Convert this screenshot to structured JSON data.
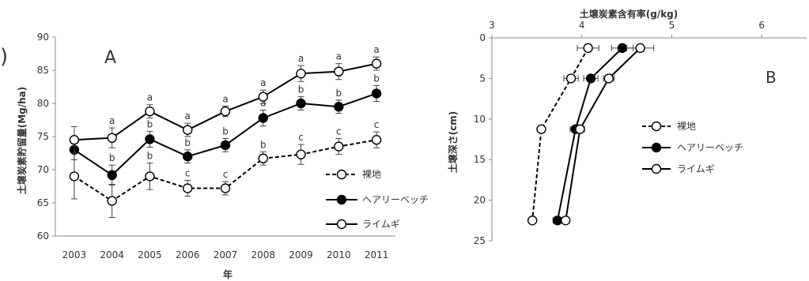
{
  "panel_letter_fragment": ")",
  "chart_data": [
    {
      "type": "line",
      "panel_label": "A",
      "title": "",
      "xlabel": "年",
      "ylabel": "土壌炭素貯留量(Mg/ha)",
      "ylim": [
        60,
        90
      ],
      "yticks": [
        60,
        65,
        70,
        75,
        80,
        85,
        90
      ],
      "x": [
        "2003",
        "2004",
        "2005",
        "2006",
        "2007",
        "2008",
        "2009",
        "2010",
        "2011"
      ],
      "grid": false,
      "legend": "bottom-right",
      "series": [
        {
          "name": "裸地",
          "marker": "open-circle",
          "line": "dashed",
          "values": [
            69.0,
            65.3,
            69.0,
            67.2,
            67.2,
            71.7,
            72.3,
            73.5,
            74.5
          ],
          "errors": [
            3.4,
            2.5,
            2.0,
            1.2,
            1.0,
            1.0,
            1.5,
            1.2,
            1.2
          ],
          "letters": [
            "",
            "b",
            "b",
            "c",
            "c",
            "b",
            "c",
            "c",
            "c"
          ]
        },
        {
          "name": "ヘアリーベッチ",
          "marker": "filled-circle",
          "line": "solid",
          "values": [
            73.0,
            69.2,
            74.6,
            72.0,
            73.7,
            77.8,
            80.0,
            79.5,
            81.5
          ],
          "errors": [
            1.5,
            1.5,
            1.2,
            1.0,
            1.0,
            1.2,
            1.0,
            1.0,
            1.2
          ],
          "letters": [
            "",
            "b",
            "b",
            "b",
            "b",
            "a",
            "b",
            "b",
            "b"
          ]
        },
        {
          "name": "ライムギ",
          "marker": "open-circle",
          "line": "solid",
          "values": [
            74.5,
            74.8,
            78.8,
            76.0,
            78.8,
            81.0,
            84.5,
            84.8,
            86.0
          ],
          "errors": [
            2.0,
            1.5,
            1.0,
            1.0,
            0.8,
            1.0,
            1.2,
            1.2,
            1.0
          ],
          "letters": [
            "",
            "a",
            "a",
            "a",
            "a",
            "a",
            "a",
            "a",
            "a"
          ]
        }
      ]
    },
    {
      "type": "line",
      "panel_label": "B",
      "title": "",
      "xlabel": "土壌炭素含有率(g/kg)",
      "ylabel": "土壌深さ(cm)",
      "xlim": [
        3,
        6.5
      ],
      "xticks": [
        3,
        4,
        5,
        6
      ],
      "ylim": [
        0,
        25
      ],
      "yticks": [
        0,
        5,
        10,
        15,
        20,
        25
      ],
      "y_reversed": true,
      "x_axis_position": "top",
      "grid": false,
      "legend": "right",
      "series": [
        {
          "name": "裸地",
          "marker": "open-circle",
          "line": "dashed",
          "x": [
            4.07,
            3.88,
            3.55,
            3.45
          ],
          "y": [
            1.25,
            5.0,
            11.25,
            22.5
          ],
          "errors": [
            0.12,
            0.08,
            0.03,
            0.03
          ]
        },
        {
          "name": "ヘアリーベッチ",
          "marker": "filled-circle",
          "line": "solid",
          "x": [
            4.45,
            4.1,
            3.93,
            3.73
          ],
          "y": [
            1.25,
            5.0,
            11.25,
            22.5
          ],
          "errors": [
            0.12,
            0.08,
            0.06,
            0.05
          ]
        },
        {
          "name": "ライムギ",
          "marker": "open-circle",
          "line": "solid",
          "x": [
            4.65,
            4.3,
            3.98,
            3.82
          ],
          "y": [
            1.25,
            5.0,
            11.25,
            22.5
          ],
          "errors": [
            0.15,
            0.06,
            0.05,
            0.04
          ]
        }
      ]
    }
  ]
}
